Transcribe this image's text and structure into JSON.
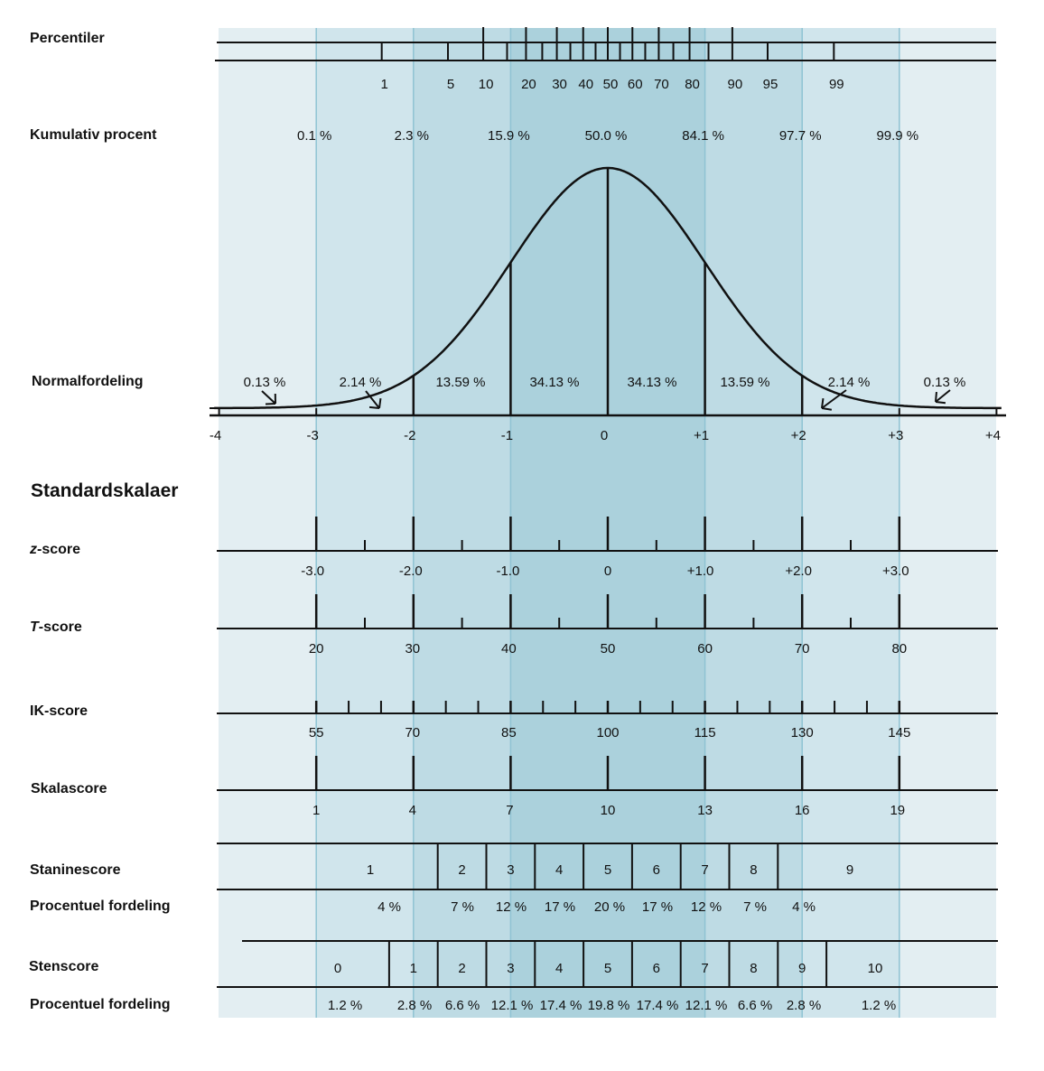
{
  "colors": {
    "band_outer": "#e3eef2",
    "band_3": "#d0e5ec",
    "band_2": "#bedbe4",
    "band_1": "#abd1dc",
    "band_line": "#8fc3d3",
    "ink": "#111111"
  },
  "percentiles": {
    "label": "Percentiler",
    "values": [
      1,
      5,
      10,
      20,
      30,
      40,
      50,
      60,
      70,
      80,
      90,
      95,
      99
    ],
    "minor_values": [
      15,
      25,
      35,
      45,
      55,
      65,
      75,
      85
    ]
  },
  "cumulative": {
    "label": "Kumulativ procent",
    "values": [
      "0.1 %",
      "2.3 %",
      "15.9 %",
      "50.0 %",
      "84.1 %",
      "97.7 %",
      "99.9 %"
    ]
  },
  "normal": {
    "label": "Normalfordeling",
    "areas": [
      "0.13 %",
      "2.14 %",
      "13.59 %",
      "34.13 %",
      "34.13 %",
      "13.59 %",
      "2.14 %",
      "0.13 %"
    ],
    "sd_labels": [
      "-4",
      "-3",
      "-2",
      "-1",
      "0",
      "+1",
      "+2",
      "+3",
      "+4"
    ]
  },
  "standard_title": "Standardskalaer",
  "zscore": {
    "label_italic": "z",
    "label_rest": "-score",
    "ticks": [
      "-3.0",
      "-2.0",
      "-1.0",
      "0",
      "+1.0",
      "+2.0",
      "+3.0"
    ]
  },
  "tscore": {
    "label_italic": "T",
    "label_rest": "-score",
    "ticks": [
      "20",
      "30",
      "40",
      "50",
      "60",
      "70",
      "80"
    ]
  },
  "iq": {
    "label": "IK-score",
    "ticks": [
      "55",
      "70",
      "85",
      "100",
      "115",
      "130",
      "145"
    ]
  },
  "scale": {
    "label": "Skalascore",
    "ticks": [
      "1",
      "4",
      "7",
      "10",
      "13",
      "16",
      "19"
    ]
  },
  "stanine": {
    "label": "Staninescore",
    "pct_label": "Procentuel fordeling",
    "scores": [
      "1",
      "2",
      "3",
      "4",
      "5",
      "6",
      "7",
      "8",
      "9"
    ],
    "percents": [
      "4 %",
      "7 %",
      "12 %",
      "17 %",
      "20 %",
      "17 %",
      "12 %",
      "7 %",
      "4 %"
    ]
  },
  "sten": {
    "label": "Stenscore",
    "pct_label": "Procentuel fordeling",
    "scores": [
      "0",
      "1",
      "2",
      "3",
      "4",
      "5",
      "6",
      "7",
      "8",
      "9",
      "10"
    ],
    "percents": [
      "1.2 %",
      "2.8 %",
      "6.6 %",
      "12.1 %",
      "17.4 %",
      "19.8 %",
      "17.4 %",
      "12.1 %",
      "6.6 %",
      "2.8 %",
      "1.2 %"
    ]
  }
}
